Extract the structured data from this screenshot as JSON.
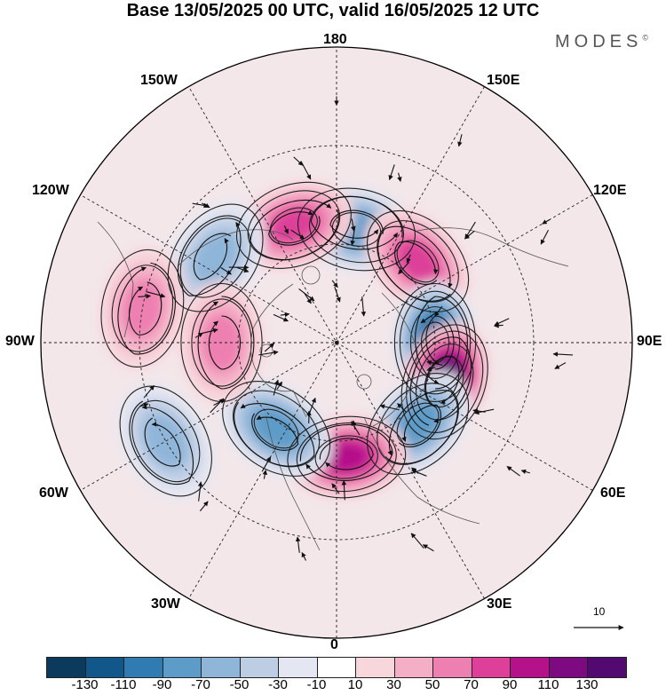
{
  "title": "Base 13/05/2025 00 UTC, valid 16/05/2025 12 UTC",
  "brand": "MODES",
  "brand_mark": "©",
  "longitude_labels": {
    "top": "180",
    "bottom": "0",
    "left": "90W",
    "right": "90E",
    "upper_left_1": "150W",
    "upper_left_2": "120W",
    "lower_left_1": "60W",
    "lower_left_2": "30W",
    "upper_right_1": "150E",
    "upper_right_2": "120E",
    "lower_right_1": "60E",
    "lower_right_2": "30E"
  },
  "vector_reference": "10",
  "colorbar": {
    "tick_labels": [
      "-130",
      "-110",
      "-90",
      "-70",
      "-50",
      "-30",
      "-10",
      "10",
      "30",
      "50",
      "70",
      "90",
      "110",
      "130"
    ],
    "colors": [
      "#0c3a5c",
      "#11578a",
      "#2f7bb2",
      "#5d9bc8",
      "#8fb5d9",
      "#bdcde4",
      "#e4e6f1",
      "#ffffff",
      "#f7d6dc",
      "#f4afc6",
      "#ee7fb1",
      "#dd3f99",
      "#b5118b",
      "#7d0a80",
      "#520a70"
    ]
  },
  "anomaly_centers": [
    {
      "lon": 170,
      "lat": 55,
      "value": -70
    },
    {
      "lon": -160,
      "lat": 52,
      "value": 70
    },
    {
      "lon": 135,
      "lat": 55,
      "value": 60
    },
    {
      "lon": -125,
      "lat": 45,
      "value": -50
    },
    {
      "lon": 90,
      "lat": 60,
      "value": -100
    },
    {
      "lon": 70,
      "lat": 55,
      "value": 120
    },
    {
      "lon": 45,
      "lat": 55,
      "value": -70
    },
    {
      "lon": 5,
      "lat": 55,
      "value": 90
    },
    {
      "lon": -35,
      "lat": 58,
      "value": -70
    },
    {
      "lon": -90,
      "lat": 55,
      "value": 40
    },
    {
      "lon": -100,
      "lat": 30,
      "value": 50
    },
    {
      "lon": -60,
      "lat": 30,
      "value": -40
    }
  ]
}
